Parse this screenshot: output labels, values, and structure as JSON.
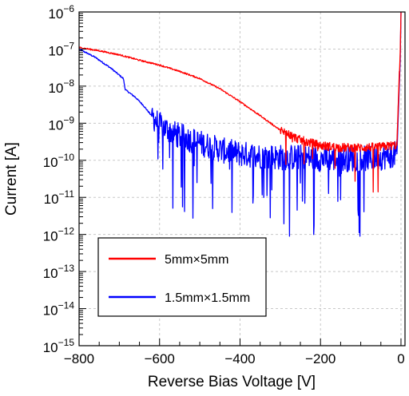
{
  "chart_data": {
    "type": "line",
    "title": "",
    "xlabel": "Reverse Bias Voltage [V]",
    "ylabel": "Current [A]",
    "xlim": [
      -800,
      10
    ],
    "ylim": [
      1e-15,
      1e-06
    ],
    "yscale": "log",
    "grid": true,
    "legend_position": "bottom-left",
    "x_ticks": [
      {
        "value": -800,
        "label": "−800"
      },
      {
        "value": -600,
        "label": "−600"
      },
      {
        "value": -400,
        "label": "−400"
      },
      {
        "value": -200,
        "label": "−200"
      },
      {
        "value": 0,
        "label": "0"
      }
    ],
    "y_ticks": [
      {
        "exp": -15,
        "base": "10",
        "sup": "−15"
      },
      {
        "exp": -14,
        "base": "10",
        "sup": "−14"
      },
      {
        "exp": -13,
        "base": "10",
        "sup": "−13"
      },
      {
        "exp": -12,
        "base": "10",
        "sup": "−12"
      },
      {
        "exp": -11,
        "base": "10",
        "sup": "−11"
      },
      {
        "exp": -10,
        "base": "10",
        "sup": "−10"
      },
      {
        "exp": -9,
        "base": "10",
        "sup": "−9"
      },
      {
        "exp": -8,
        "base": "10",
        "sup": "−8"
      },
      {
        "exp": -7,
        "base": "10",
        "sup": "−7"
      },
      {
        "exp": -6,
        "base": "10",
        "sup": "−6"
      }
    ],
    "series": [
      {
        "name": "5mm×5mm",
        "color": "#ff0000",
        "noise_decades": 0.12,
        "spike_depth_decades": 1.4,
        "spike_prob": 0.05,
        "noise_start_x": -300,
        "x": [
          -800,
          -750,
          -700,
          -650,
          -600,
          -550,
          -500,
          -450,
          -400,
          -350,
          -300,
          -250,
          -200,
          -150,
          -100,
          -50,
          -10,
          -2,
          0
        ],
        "y": [
          1.1e-07,
          9e-08,
          7e-08,
          5e-08,
          3.7e-08,
          2.5e-08,
          1.6e-08,
          8.5e-09,
          3.8e-09,
          1.6e-09,
          6.5e-10,
          3.5e-10,
          2.5e-10,
          2.2e-10,
          2.2e-10,
          2.3e-10,
          2.6e-10,
          8e-08,
          1e-06
        ]
      },
      {
        "name": "1.5mm×1.5mm",
        "color": "#0000ff",
        "noise_decades": 0.35,
        "spike_depth_decades": 2.0,
        "spike_prob": 0.07,
        "noise_start_x": -620,
        "x": [
          -800,
          -760,
          -720,
          -690,
          -685,
          -660,
          -640,
          -620,
          -600,
          -560,
          -520,
          -480,
          -440,
          -400,
          -350,
          -300,
          -250,
          -200,
          -150,
          -100,
          -50,
          -10,
          -2,
          0
        ],
        "y": [
          1e-07,
          6e-08,
          3e-08,
          1.6e-08,
          8e-09,
          5e-09,
          3e-09,
          1.6e-09,
          9e-10,
          5e-10,
          3.5e-10,
          2.5e-10,
          1.8e-10,
          1.5e-10,
          1.3e-10,
          1.2e-10,
          1.2e-10,
          1.1e-10,
          1.1e-10,
          1.1e-10,
          1.2e-10,
          1.5e-10,
          5e-08,
          1e-06
        ]
      }
    ]
  }
}
